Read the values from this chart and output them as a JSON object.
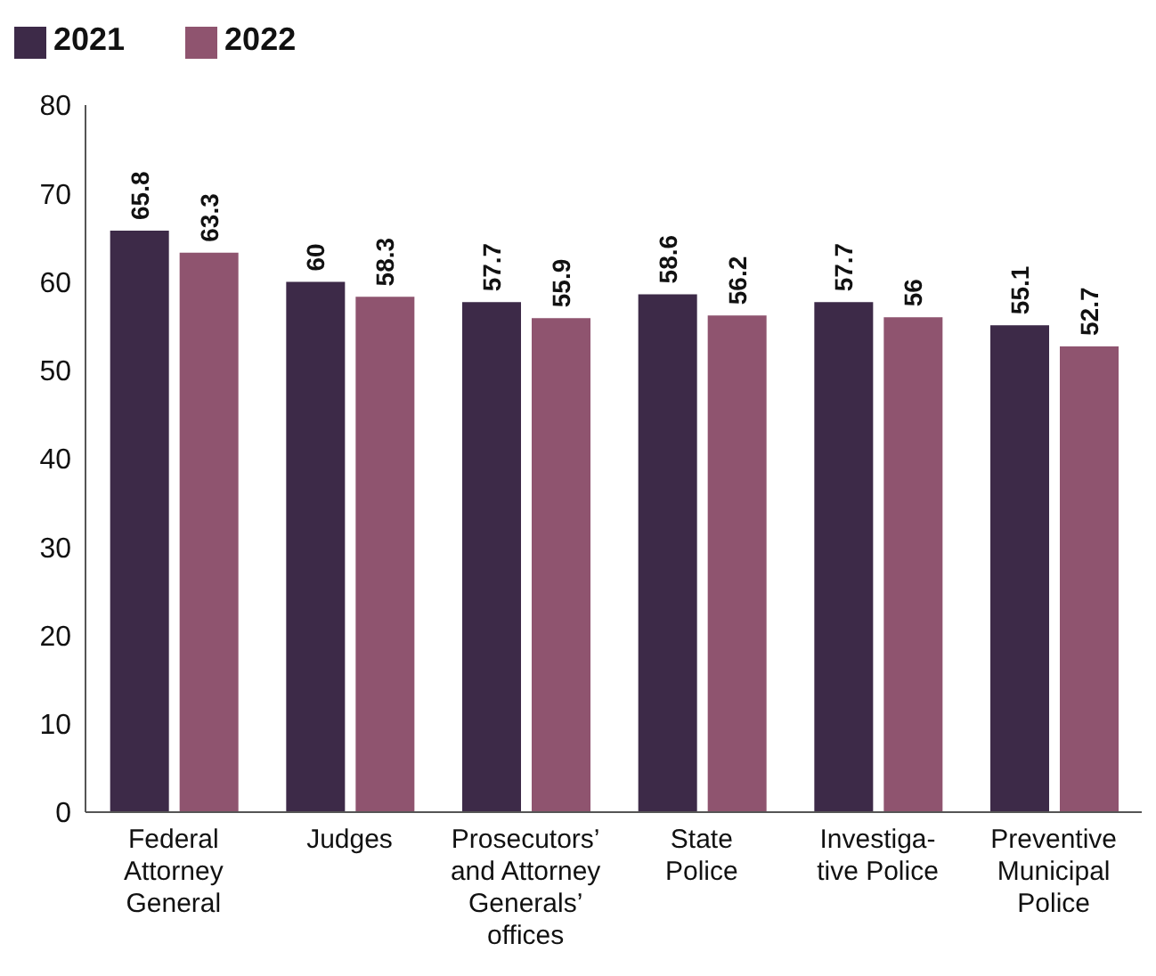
{
  "chart_data": {
    "type": "bar",
    "categories": [
      "Federal\nAttorney\nGeneral",
      "Judges",
      "Prosecutors’\nand Attorney\nGenerals’\noffices",
      "State\nPolice",
      "Investiga-\ntive Police",
      "Preventive\nMunicipal\nPolice"
    ],
    "series": [
      {
        "name": "2021",
        "color": "#3d2a48",
        "values": [
          65.8,
          60,
          57.7,
          58.6,
          57.7,
          55.1
        ]
      },
      {
        "name": "2022",
        "color": "#8f546f",
        "values": [
          63.3,
          58.3,
          55.9,
          56.2,
          56,
          52.7
        ]
      }
    ],
    "ylim": [
      0,
      80
    ],
    "yticks": [
      0,
      10,
      20,
      30,
      40,
      50,
      60,
      70,
      80
    ],
    "grid": false,
    "legend": "top left",
    "data_labels": true
  }
}
